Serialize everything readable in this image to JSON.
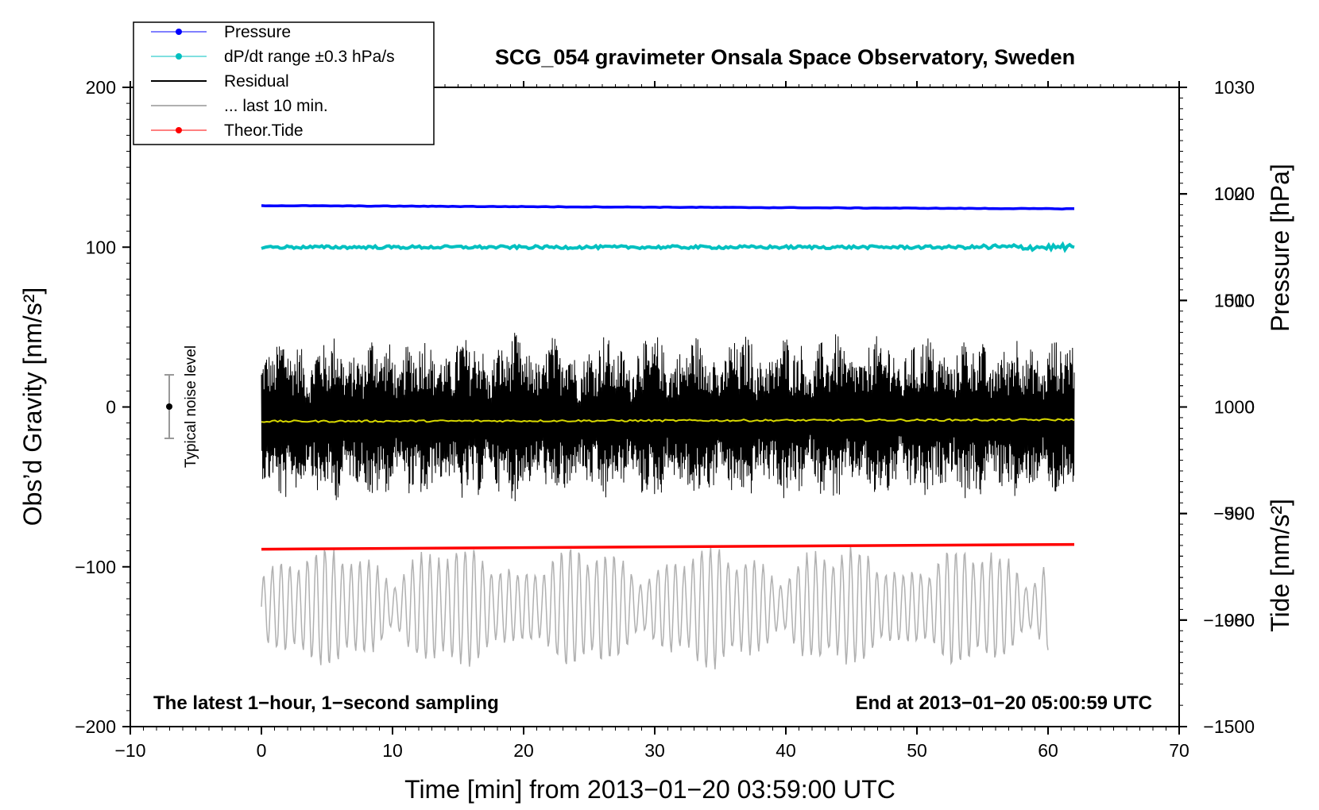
{
  "chart_data": {
    "type": "line",
    "title": "SCG_054 gravimeter Onsala Space Observatory, Sweden",
    "xlabel": "Time [min] from 2013−01−20 03:59:00 UTC",
    "ylabel_left": "Obs’d Gravity [nm/s²]",
    "ylabel_right_top": "Pressure [hPa]",
    "ylabel_right_bottom": "Tide [nm/s²]",
    "xlim": [
      -10,
      70
    ],
    "ylim_left": [
      -200,
      200
    ],
    "x_ticks": [
      -10,
      0,
      10,
      20,
      30,
      40,
      50,
      60,
      70
    ],
    "x_tick_labels": [
      "−10",
      "0",
      "10",
      "20",
      "30",
      "40",
      "50",
      "60",
      "70"
    ],
    "y_left_ticks": [
      -200,
      -100,
      0,
      100,
      200
    ],
    "y_left_tick_labels": [
      "−200",
      "−100",
      "0",
      "100",
      "200"
    ],
    "pressure_axis": {
      "ticks": [
        980,
        990,
        1000,
        1010,
        1020,
        1030
      ],
      "tick_labels": [
        "980",
        "990",
        "1000",
        "1010",
        "1020",
        "1030"
      ],
      "range": [
        970,
        1030
      ]
    },
    "tide_axis": {
      "ticks": [
        -1500,
        -1000,
        -500,
        0,
        500,
        1000
      ],
      "tick_labels": [
        "−1500",
        "−1000",
        "−500",
        "0",
        "500",
        "1000"
      ],
      "range": [
        -1500,
        1500
      ]
    },
    "legend": {
      "placement": "top-left",
      "entries": [
        {
          "label": "Pressure",
          "color": "#0000ff",
          "marker": true
        },
        {
          "label": "dP/dt range ±0.3 hPa/s",
          "color": "#00c0c0",
          "marker": true
        },
        {
          "label": "Residual",
          "color": "#000000",
          "marker": false
        },
        {
          "label": "... last 10 min.",
          "color": "#b0b0b0",
          "marker": false
        },
        {
          "label": "Theor.Tide",
          "color": "#ff0000",
          "marker": true
        }
      ]
    },
    "series": [
      {
        "name": "Pressure",
        "axis": "left",
        "color": "#0000ff",
        "x_range": [
          0,
          62
        ],
        "start": 126,
        "end": 124,
        "noise": 0.3
      },
      {
        "name": "dP/dt range ±0.3 hPa/s",
        "axis": "left",
        "color": "#00c0c0",
        "x_range": [
          0,
          62
        ],
        "start": 100,
        "end": 100,
        "noise": 1.2
      },
      {
        "name": "Residual",
        "axis": "left",
        "color": "#000000",
        "x_range": [
          0,
          62
        ],
        "center": -8,
        "amplitude_max": 55
      },
      {
        "name": "Residual mean",
        "axis": "left",
        "color": "#d8d800",
        "x_range": [
          0,
          62
        ],
        "start": -9,
        "end": -8
      },
      {
        "name": "... last 10 min.",
        "axis": "left",
        "color": "#b0b0b0",
        "x_range": [
          0,
          60
        ],
        "center": -125,
        "amplitude_max": 40
      },
      {
        "name": "Theor.Tide",
        "axis": "left",
        "color": "#ff0000",
        "x_range": [
          0,
          62
        ],
        "start": -89,
        "end": -86
      }
    ],
    "noise_level": {
      "label": "Typical noise level",
      "x": -7,
      "center": 0,
      "plus_minus": 20
    },
    "annotations": {
      "bottom_left": "The latest 1−hour, 1−second sampling",
      "bottom_right": "End at 2013−01−20 05:00:59 UTC"
    }
  }
}
